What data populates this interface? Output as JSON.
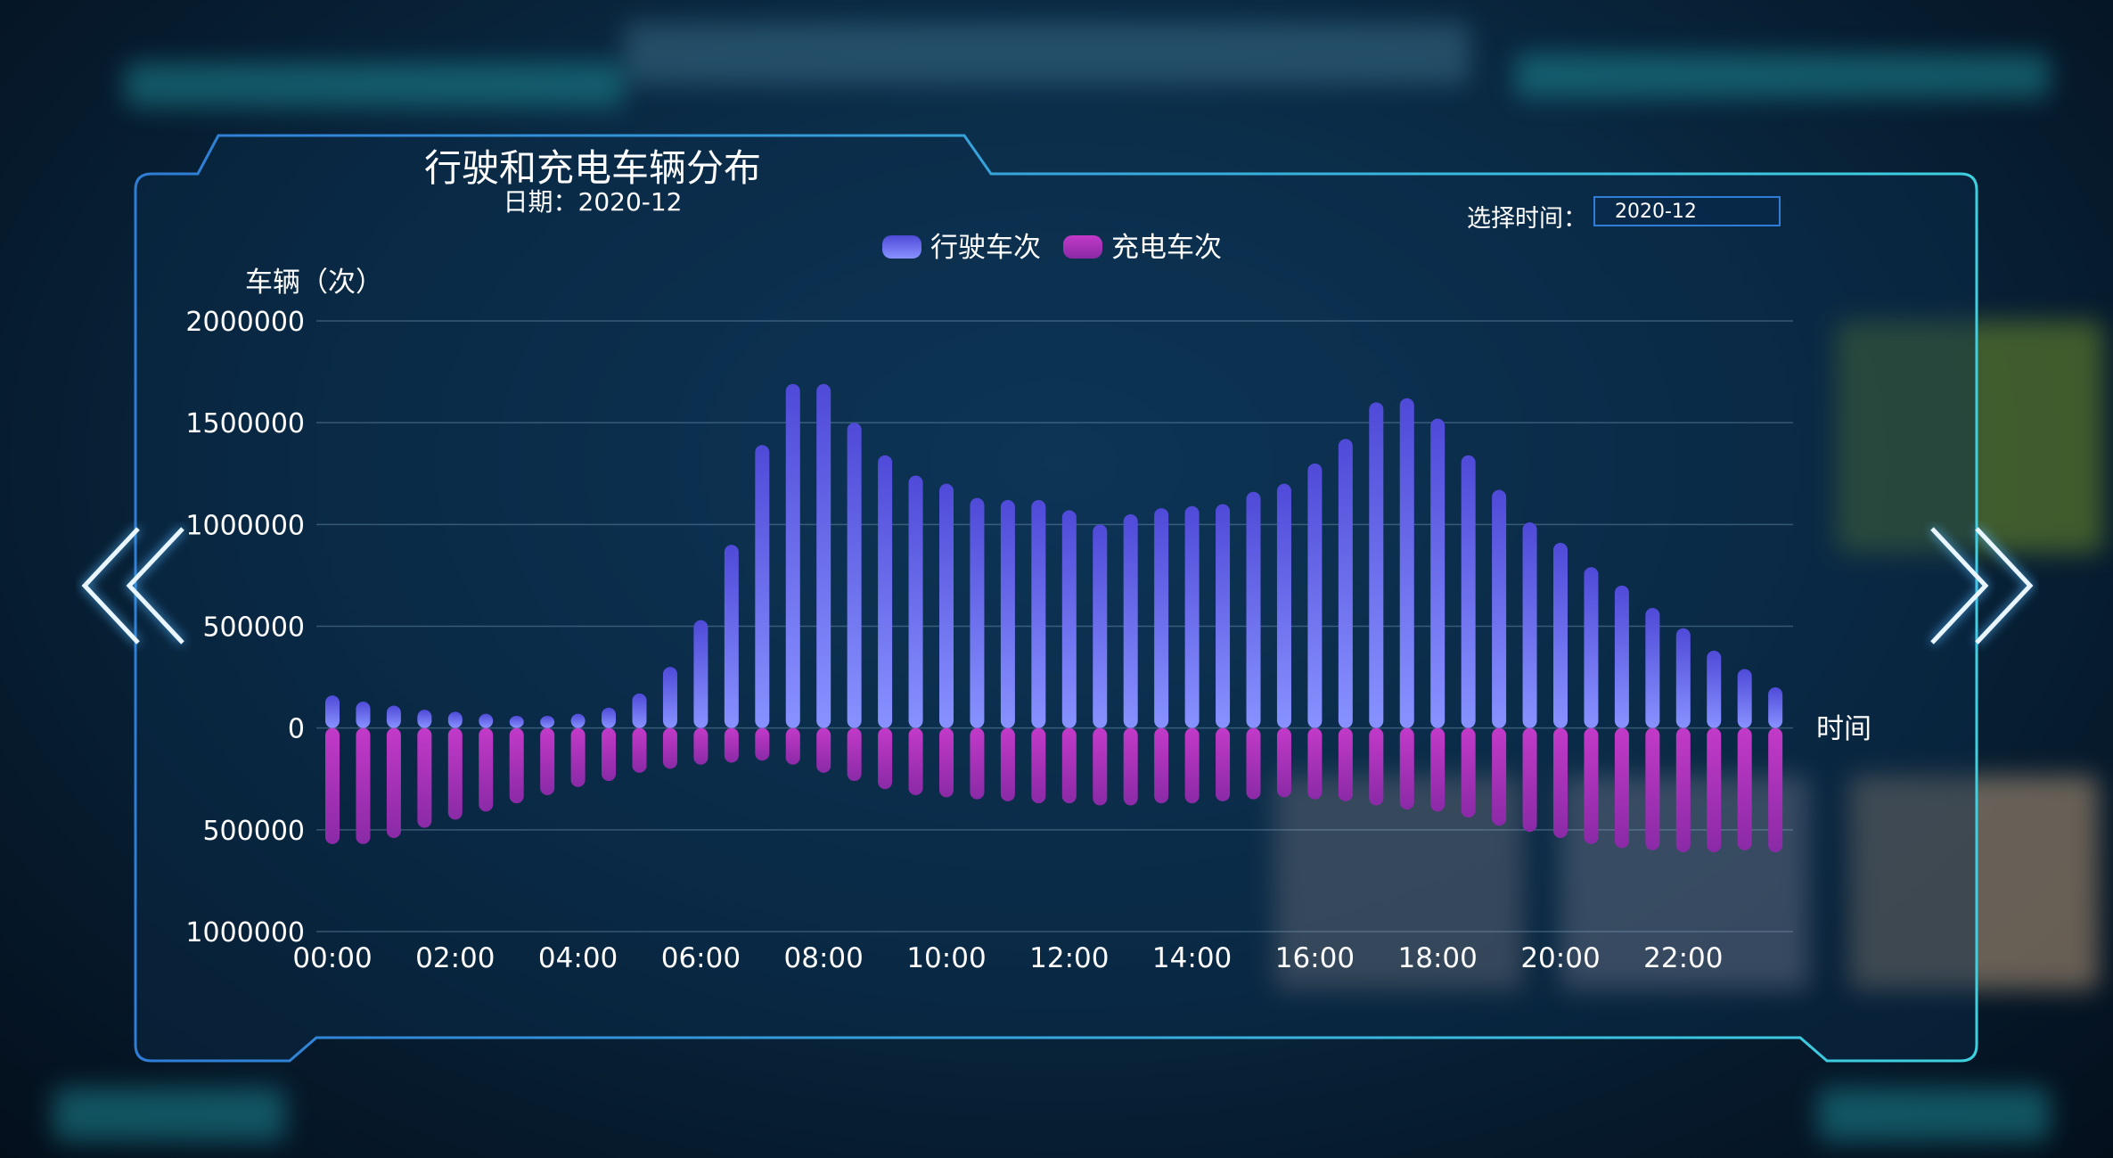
{
  "header": {
    "title": "行驶和充电车辆分布",
    "date_label": "日期：2020-12"
  },
  "time_selector": {
    "label": "选择时间：",
    "value": "2020-12"
  },
  "colors": {
    "driving_top": "#4f4ad8",
    "driving_bottom": "#8892ff",
    "charging_top": "#c23ac8",
    "charging_bottom": "#8a2aa6",
    "frame": "#2f7dd6",
    "arrow": "#55b8ff"
  },
  "icons": {
    "prev": "double-chevron-left-icon",
    "next": "double-chevron-right-icon"
  },
  "chart_data": {
    "type": "bar",
    "ylabel": "车辆（次）",
    "xlabel": "时间",
    "ylim": [
      -1000000,
      2000000
    ],
    "y_ticks": [
      {
        "value": 2000000,
        "label": "2000000"
      },
      {
        "value": 1500000,
        "label": "1500000"
      },
      {
        "value": 1000000,
        "label": "1000000"
      },
      {
        "value": 500000,
        "label": "500000"
      },
      {
        "value": 0,
        "label": "0"
      },
      {
        "value": -500000,
        "label": "500000"
      },
      {
        "value": -1000000,
        "label": "1000000"
      }
    ],
    "x_tick_labels": [
      "00:00",
      "02:00",
      "04:00",
      "06:00",
      "08:00",
      "10:00",
      "12:00",
      "14:00",
      "16:00",
      "18:00",
      "20:00",
      "22:00"
    ],
    "categories": [
      "00:00",
      "00:30",
      "01:00",
      "01:30",
      "02:00",
      "02:30",
      "03:00",
      "03:30",
      "04:00",
      "04:30",
      "05:00",
      "05:30",
      "06:00",
      "06:30",
      "07:00",
      "07:30",
      "08:00",
      "08:30",
      "09:00",
      "09:30",
      "10:00",
      "10:30",
      "11:00",
      "11:30",
      "12:00",
      "12:30",
      "13:00",
      "13:30",
      "14:00",
      "14:30",
      "15:00",
      "15:30",
      "16:00",
      "16:30",
      "17:00",
      "17:30",
      "18:00",
      "18:30",
      "19:00",
      "19:30",
      "20:00",
      "20:30",
      "21:00",
      "21:30",
      "22:00",
      "22:30",
      "23:00",
      "23:30"
    ],
    "legend_position": "top-center",
    "series": [
      {
        "name": "行驶车次",
        "values": [
          160000,
          130000,
          110000,
          90000,
          80000,
          70000,
          60000,
          60000,
          70000,
          100000,
          170000,
          300000,
          530000,
          900000,
          1390000,
          1690000,
          1690000,
          1500000,
          1340000,
          1240000,
          1200000,
          1130000,
          1120000,
          1120000,
          1070000,
          1000000,
          1050000,
          1080000,
          1090000,
          1100000,
          1160000,
          1200000,
          1300000,
          1420000,
          1600000,
          1620000,
          1520000,
          1340000,
          1170000,
          1010000,
          910000,
          790000,
          700000,
          590000,
          490000,
          380000,
          290000,
          200000
        ]
      },
      {
        "name": "充电车次",
        "values": [
          -570000,
          -570000,
          -540000,
          -490000,
          -450000,
          -410000,
          -370000,
          -330000,
          -290000,
          -260000,
          -220000,
          -200000,
          -180000,
          -170000,
          -160000,
          -180000,
          -220000,
          -260000,
          -300000,
          -330000,
          -340000,
          -350000,
          -360000,
          -370000,
          -370000,
          -380000,
          -380000,
          -370000,
          -370000,
          -360000,
          -350000,
          -340000,
          -350000,
          -360000,
          -380000,
          -400000,
          -410000,
          -440000,
          -480000,
          -510000,
          -540000,
          -570000,
          -590000,
          -600000,
          -610000,
          -610000,
          -600000,
          -610000
        ]
      }
    ]
  }
}
